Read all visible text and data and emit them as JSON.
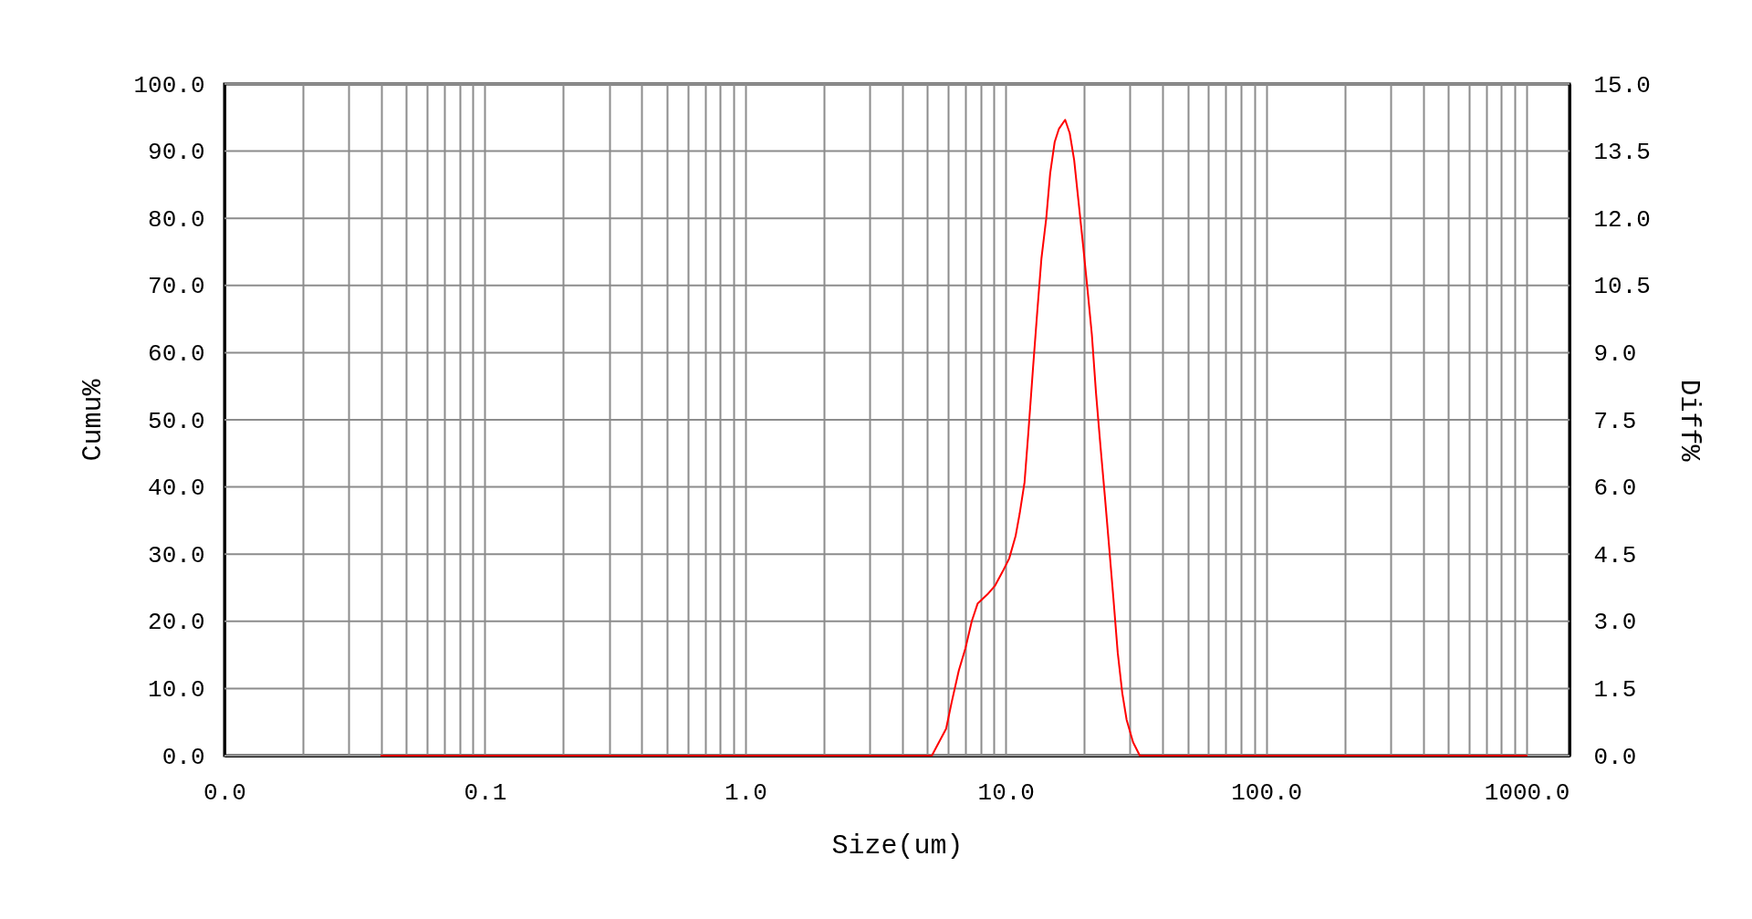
{
  "chart_data": {
    "type": "line",
    "xlabel": "Size(um)",
    "ylabel": "Cumu%",
    "y2label": "Diff%",
    "xlim": [
      0.01,
      1460
    ],
    "xticks": [
      {
        "value": 0.01,
        "label": "0.0"
      },
      {
        "value": 0.02,
        "label": null
      },
      {
        "value": 0.03,
        "label": null
      },
      {
        "value": 0.04,
        "label": null
      },
      {
        "value": 0.05,
        "label": null
      },
      {
        "value": 0.06,
        "label": null
      },
      {
        "value": 0.07,
        "label": null
      },
      {
        "value": 0.08,
        "label": null
      },
      {
        "value": 0.09,
        "label": null
      },
      {
        "value": 0.1,
        "label": "0.1"
      },
      {
        "value": 0.2,
        "label": null
      },
      {
        "value": 0.3,
        "label": null
      },
      {
        "value": 0.4,
        "label": null
      },
      {
        "value": 0.5,
        "label": null
      },
      {
        "value": 0.6,
        "label": null
      },
      {
        "value": 0.7,
        "label": null
      },
      {
        "value": 0.8,
        "label": null
      },
      {
        "value": 0.9,
        "label": null
      },
      {
        "value": 1,
        "label": "1.0"
      },
      {
        "value": 2,
        "label": null
      },
      {
        "value": 3,
        "label": null
      },
      {
        "value": 4,
        "label": null
      },
      {
        "value": 5,
        "label": null
      },
      {
        "value": 6,
        "label": null
      },
      {
        "value": 7,
        "label": null
      },
      {
        "value": 8,
        "label": null
      },
      {
        "value": 9,
        "label": null
      },
      {
        "value": 10,
        "label": "10.0"
      },
      {
        "value": 20,
        "label": null
      },
      {
        "value": 30,
        "label": null
      },
      {
        "value": 40,
        "label": null
      },
      {
        "value": 50,
        "label": null
      },
      {
        "value": 60,
        "label": null
      },
      {
        "value": 70,
        "label": null
      },
      {
        "value": 80,
        "label": null
      },
      {
        "value": 90,
        "label": null
      },
      {
        "value": 100,
        "label": "100.0"
      },
      {
        "value": 200,
        "label": null
      },
      {
        "value": 300,
        "label": null
      },
      {
        "value": 400,
        "label": null
      },
      {
        "value": 500,
        "label": null
      },
      {
        "value": 600,
        "label": null
      },
      {
        "value": 700,
        "label": null
      },
      {
        "value": 800,
        "label": null
      },
      {
        "value": 900,
        "label": null
      },
      {
        "value": 1000,
        "label": "1000.0"
      }
    ],
    "ylim": [
      0,
      100
    ],
    "yticks": [
      {
        "value": 0,
        "label": "0.0"
      },
      {
        "value": 10,
        "label": "10.0"
      },
      {
        "value": 20,
        "label": "20.0"
      },
      {
        "value": 30,
        "label": "30.0"
      },
      {
        "value": 40,
        "label": "40.0"
      },
      {
        "value": 50,
        "label": "50.0"
      },
      {
        "value": 60,
        "label": "60.0"
      },
      {
        "value": 70,
        "label": "70.0"
      },
      {
        "value": 80,
        "label": "80.0"
      },
      {
        "value": 90,
        "label": "90.0"
      },
      {
        "value": 100,
        "label": "100.0"
      }
    ],
    "y2lim": [
      0,
      15
    ],
    "y2ticks": [
      {
        "value": 0,
        "label": "0.0"
      },
      1.5,
      {
        "value": 3,
        "label": "3.0"
      },
      4.5,
      {
        "value": 6,
        "label": "6.0"
      },
      7.5,
      {
        "value": 9,
        "label": "9.0"
      },
      10.5,
      {
        "value": 12,
        "label": "12.0"
      },
      13.5,
      {
        "value": 15,
        "label": "15.0"
      }
    ],
    "log": "x",
    "grid": true,
    "line_style": "solid",
    "series": [
      {
        "color": "#ff0000",
        "axis": "y2",
        "x": [
          0.04,
          5.2,
          5.9,
          6.2,
          6.6,
          7.0,
          7.4,
          7.8,
          8.5,
          9.1,
          9.7,
          10.3,
          10.9,
          11.3,
          11.8,
          12.2,
          12.7,
          13.2,
          13.7,
          14.3,
          14.8,
          15.4,
          16.0,
          16.9,
          17.6,
          18.3,
          19.0,
          19.8,
          20.6,
          21.4,
          22.2,
          23.1,
          24.0,
          24.9,
          25.9,
          26.9,
          28.0,
          29.1,
          30.8,
          32.7,
          1000
        ],
        "values": [
          0,
          0,
          0.6,
          1.2,
          1.9,
          2.4,
          3.0,
          3.4,
          3.6,
          3.8,
          4.1,
          4.4,
          4.9,
          5.4,
          6.1,
          7.2,
          8.6,
          9.9,
          11.1,
          12.0,
          13.0,
          13.7,
          14.0,
          14.2,
          13.9,
          13.3,
          12.4,
          11.4,
          10.4,
          9.4,
          8.1,
          6.9,
          5.8,
          4.7,
          3.5,
          2.3,
          1.4,
          0.8,
          0.3,
          0,
          0
        ]
      }
    ]
  }
}
